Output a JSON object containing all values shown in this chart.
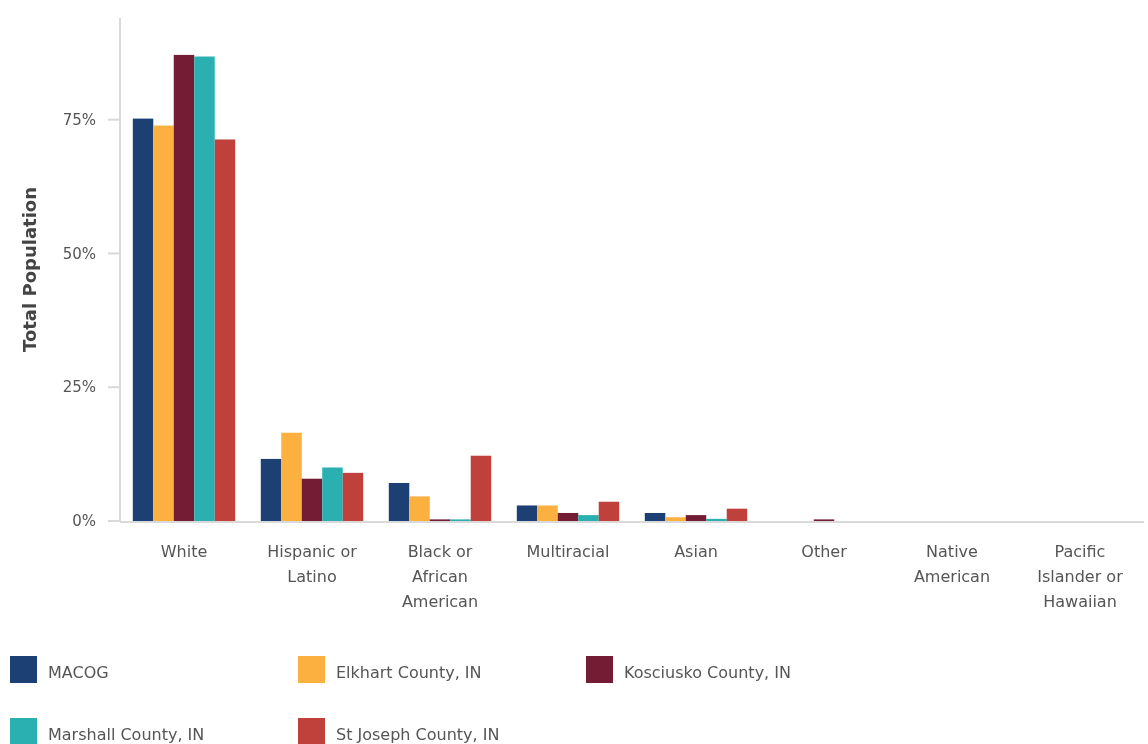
{
  "chart_data": {
    "type": "bar",
    "ylabel": "Total Population",
    "categories": [
      "White",
      "Hispanic or Latino",
      "Black or African American",
      "Multiracial",
      "Asian",
      "Other",
      "Native American",
      "Pacific Islander or Hawaiian"
    ],
    "series": [
      {
        "name": "MACOG",
        "color": "#1c3f74",
        "values": [
          75.2,
          11.6,
          7.1,
          2.9,
          1.5,
          0,
          0,
          0
        ]
      },
      {
        "name": "Elkhart County, IN",
        "color": "#fbb040",
        "values": [
          73.9,
          16.5,
          4.6,
          2.9,
          0.7,
          0,
          0,
          0
        ]
      },
      {
        "name": "Kosciusko County, IN",
        "color": "#731c34",
        "values": [
          87.1,
          7.9,
          0.3,
          1.5,
          1.1,
          0.3,
          0,
          0
        ]
      },
      {
        "name": "Marshall County, IN",
        "color": "#2ab0b0",
        "values": [
          86.8,
          10.0,
          0.3,
          1.1,
          0.4,
          0,
          0,
          0
        ]
      },
      {
        "name": "St Joseph County, IN",
        "color": "#c0403c",
        "values": [
          71.3,
          9.0,
          12.2,
          3.6,
          2.3,
          0,
          0,
          0
        ]
      }
    ],
    "ylim": [
      0,
      94
    ],
    "yticks": [
      {
        "value": 0,
        "label": "0%"
      },
      {
        "value": 25,
        "label": "25%"
      },
      {
        "value": 50,
        "label": "50%"
      },
      {
        "value": 75,
        "label": "75%"
      }
    ],
    "grid": false,
    "legend": "bottom"
  }
}
